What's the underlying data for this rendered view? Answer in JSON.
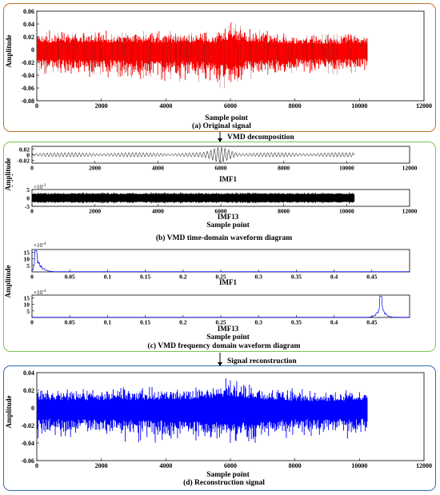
{
  "colors": {
    "orange_frame": "#c0722a",
    "green_frame": "#78c850",
    "blue_frame": "#2e6db4",
    "original_signal": "#ff0000",
    "original_signal_dark": "#8b1a1a",
    "imf_time": "#000000",
    "imf_spectrum": "#0000ff",
    "reconstruction": "#0000ff"
  },
  "arrows": {
    "decomposition": "VMD decomposition",
    "reconstruction": "Signal reconstruction"
  },
  "panel_a": {
    "caption": "(a) Original signal",
    "chart_data": {
      "type": "line",
      "ylabel": "Amplitude",
      "xlabel": "Sample point",
      "xlim": [
        0,
        12000
      ],
      "ylim": [
        -0.08,
        0.06
      ],
      "xticks": [
        "0",
        "2000",
        "4000",
        "6000",
        "8000",
        "10000",
        "12000"
      ],
      "yticks": [
        "-0.08",
        "-0.06",
        "-0.04",
        "-0.02",
        "0",
        "0.02",
        "0.04",
        "0.06"
      ],
      "samples": 10240,
      "envelope": [
        {
          "x": 0,
          "min": -0.04,
          "max": 0.03
        },
        {
          "x": 2000,
          "min": -0.045,
          "max": 0.03
        },
        {
          "x": 4000,
          "min": -0.05,
          "max": 0.03
        },
        {
          "x": 5500,
          "min": -0.055,
          "max": 0.03
        },
        {
          "x": 6000,
          "min": -0.07,
          "max": 0.045
        },
        {
          "x": 6500,
          "min": -0.05,
          "max": 0.035
        },
        {
          "x": 8000,
          "min": -0.04,
          "max": 0.025
        },
        {
          "x": 10240,
          "min": -0.04,
          "max": 0.025
        }
      ]
    }
  },
  "panel_b": {
    "caption": "(b) VMD time-domain waveform diagram",
    "ylabel": "Amplitude",
    "xlabel": "Sample point",
    "continuation_dots": "·",
    "imf1": {
      "label": "IMF1",
      "chart_data": {
        "type": "line",
        "xlim": [
          0,
          12000
        ],
        "ylim": [
          -0.03,
          0.03
        ],
        "xticks": [
          "0",
          "2000",
          "4000",
          "6000",
          "8000",
          "10000",
          "12000"
        ],
        "yticks": [
          "0.02",
          "0",
          "-0.02"
        ],
        "samples": 10240,
        "burst_center": 6000
      }
    },
    "imf13": {
      "label": "IMF13",
      "chart_data": {
        "type": "line",
        "xlim": [
          0,
          12000
        ],
        "ylim": [
          -5,
          5
        ],
        "xticks": [
          "0",
          "2000",
          "4000",
          "6000",
          "8000",
          "10000",
          "12000"
        ],
        "yticks": [
          "5",
          "0",
          "-5"
        ],
        "multiplier": "×10",
        "multiplier_exp": "-3",
        "samples": 10240
      }
    }
  },
  "panel_c": {
    "caption": "(c) VMD frequency domain waveform diagram",
    "ylabel": "Amplitude",
    "xlabel": "Sample point",
    "imf1": {
      "label": "IMF1",
      "chart_data": {
        "type": "line",
        "xlim": [
          0,
          0.5
        ],
        "ylim": [
          0,
          17
        ],
        "xticks": [
          "0",
          "0.05",
          "0.1",
          "0.15",
          "0.2",
          "0.25",
          "0.3",
          "0.35",
          "0.4",
          "0.45"
        ],
        "yticks": [
          "15",
          "10",
          "5"
        ],
        "multiplier": "×10",
        "multiplier_exp": "-4",
        "peak_frequency": 0.005,
        "peak_value": 16
      }
    },
    "imf13": {
      "label": "IMF13",
      "chart_data": {
        "type": "line",
        "xlim": [
          0,
          0.5
        ],
        "ylim": [
          0,
          17
        ],
        "xticks": [
          "0",
          "0.05",
          "0.1",
          "0.15",
          "0.2",
          "0.25",
          "0.3",
          "0.35",
          "0.4",
          "0.45"
        ],
        "yticks": [
          "15",
          "10",
          "5"
        ],
        "multiplier": "×10",
        "multiplier_exp": "-4",
        "peak_frequency": 0.462,
        "peak_value": 16
      }
    }
  },
  "panel_d": {
    "caption": "(d) Reconstruction signal",
    "chart_data": {
      "type": "line",
      "ylabel": "Amplitude",
      "xlabel": "Sample point",
      "xlim": [
        0,
        12000
      ],
      "ylim": [
        -0.06,
        0.04
      ],
      "xticks": [
        "0",
        "2000",
        "4000",
        "6000",
        "8000",
        "10000",
        "12000"
      ],
      "yticks": [
        "-0.06",
        "-0.04",
        "-0.02",
        "0",
        "0.02",
        "0.04"
      ],
      "samples": 10240,
      "envelope": [
        {
          "x": 0,
          "min": -0.035,
          "max": 0.025
        },
        {
          "x": 4000,
          "min": -0.04,
          "max": 0.025
        },
        {
          "x": 5500,
          "min": -0.045,
          "max": 0.028
        },
        {
          "x": 6000,
          "min": -0.055,
          "max": 0.038
        },
        {
          "x": 6500,
          "min": -0.045,
          "max": 0.03
        },
        {
          "x": 8000,
          "min": -0.035,
          "max": 0.022
        },
        {
          "x": 10240,
          "min": -0.035,
          "max": 0.022
        }
      ]
    }
  }
}
